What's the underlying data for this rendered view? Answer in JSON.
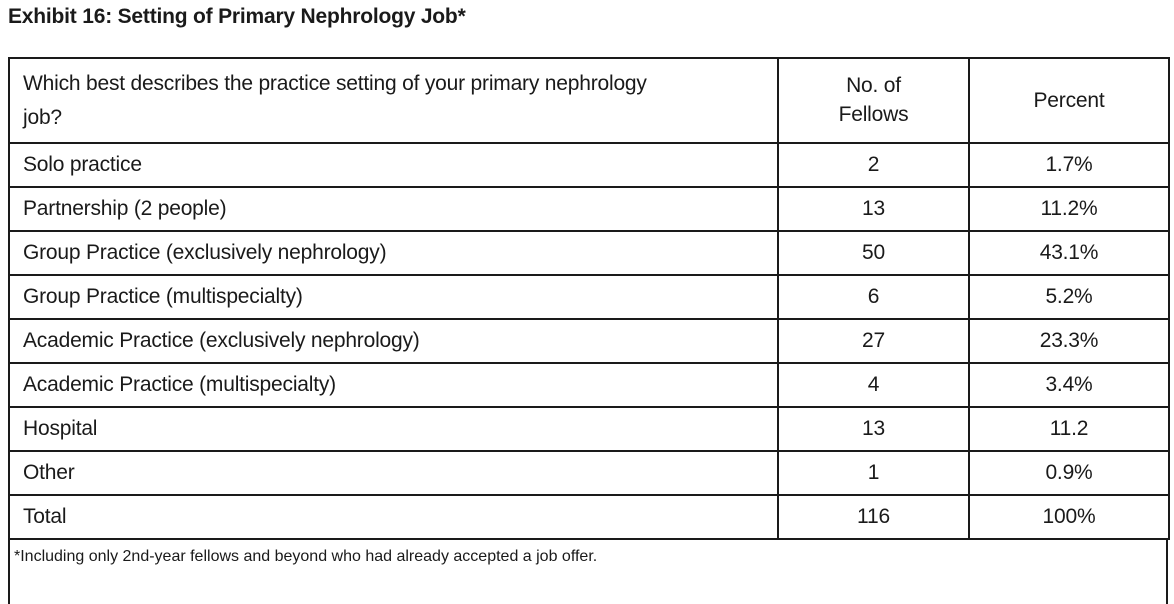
{
  "title": "Exhibit 16: Setting of Primary Nephrology Job*",
  "table": {
    "header": {
      "question": "Which best describes the practice setting of your primary nephrology job?",
      "fellows": "No. of\nFellows",
      "percent": "Percent"
    },
    "rows": [
      {
        "label": "Solo practice",
        "fellows": "2",
        "percent": "1.7%"
      },
      {
        "label": "Partnership (2 people)",
        "fellows": "13",
        "percent": "11.2%"
      },
      {
        "label": "Group Practice (exclusively nephrology)",
        "fellows": "50",
        "percent": "43.1%"
      },
      {
        "label": "Group Practice (multispecialty)",
        "fellows": "6",
        "percent": "5.2%"
      },
      {
        "label": "Academic Practice (exclusively nephrology)",
        "fellows": "27",
        "percent": "23.3%"
      },
      {
        "label": "Academic Practice (multispecialty)",
        "fellows": "4",
        "percent": "3.4%"
      },
      {
        "label": "Hospital",
        "fellows": "13",
        "percent": "11.2"
      },
      {
        "label": "Other",
        "fellows": "1",
        "percent": "0.9%"
      },
      {
        "label": "Total",
        "fellows": "116",
        "percent": "100%"
      }
    ],
    "footnote": "*Including only 2nd-year fellows and beyond who had already accepted a job offer."
  },
  "colors": {
    "text": "#1a1a1a",
    "border": "#1a1a1a",
    "background": "#ffffff"
  }
}
